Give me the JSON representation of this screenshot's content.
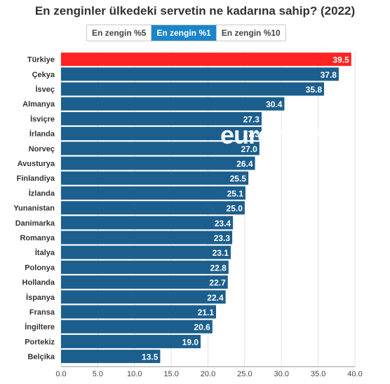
{
  "header": {
    "title": "En zenginler ülkedeki servetin ne kadarına sahip? (2022)"
  },
  "tabs": [
    {
      "label": "En zengin %5",
      "active": false
    },
    {
      "label": "En zengin %1",
      "active": true
    },
    {
      "label": "En zengin %10",
      "active": false
    }
  ],
  "logo": {
    "text": "euronews."
  },
  "colors": {
    "bar": "#1c5f8e",
    "highlight": "#ff2323",
    "active_tab": "#1b85c9"
  },
  "chart_data": {
    "type": "bar",
    "orientation": "horizontal",
    "title": "En zenginler ülkedeki servetin ne kadarına sahip? (2022)",
    "categories": [
      "Türkiye",
      "Çekya",
      "İsveç",
      "Almanya",
      "İsviçre",
      "İrlanda",
      "Norveç",
      "Avusturya",
      "Finlandiya",
      "İzlanda",
      "Yunanistan",
      "Danimarka",
      "Romanya",
      "İtalya",
      "Polonya",
      "Hollanda",
      "İspanya",
      "Fransa",
      "İngiltere",
      "Portekiz",
      "Belçika"
    ],
    "values": [
      39.5,
      37.8,
      35.8,
      30.4,
      27.3,
      27.3,
      27.0,
      26.4,
      25.5,
      25.1,
      25.0,
      23.4,
      23.3,
      23.1,
      22.8,
      22.7,
      22.4,
      21.1,
      20.6,
      19.0,
      13.5
    ],
    "value_labels": [
      "39.5",
      "37.8",
      "35.8",
      "30.4",
      "27.3",
      "27.3",
      "27.0",
      "26.4",
      "25.5",
      "25.1",
      "25.0",
      "23.4",
      "23.3",
      "23.1",
      "22.8",
      "22.7",
      "22.4",
      "21.1",
      "20.6",
      "19.0",
      "13.5"
    ],
    "highlight": "Türkiye",
    "xlim": [
      0,
      40
    ],
    "xticks": [
      "0.0",
      "5.0",
      "10.0",
      "15.0",
      "20.0",
      "25.0",
      "30.0",
      "35.0",
      "40.0"
    ],
    "grid": true
  }
}
